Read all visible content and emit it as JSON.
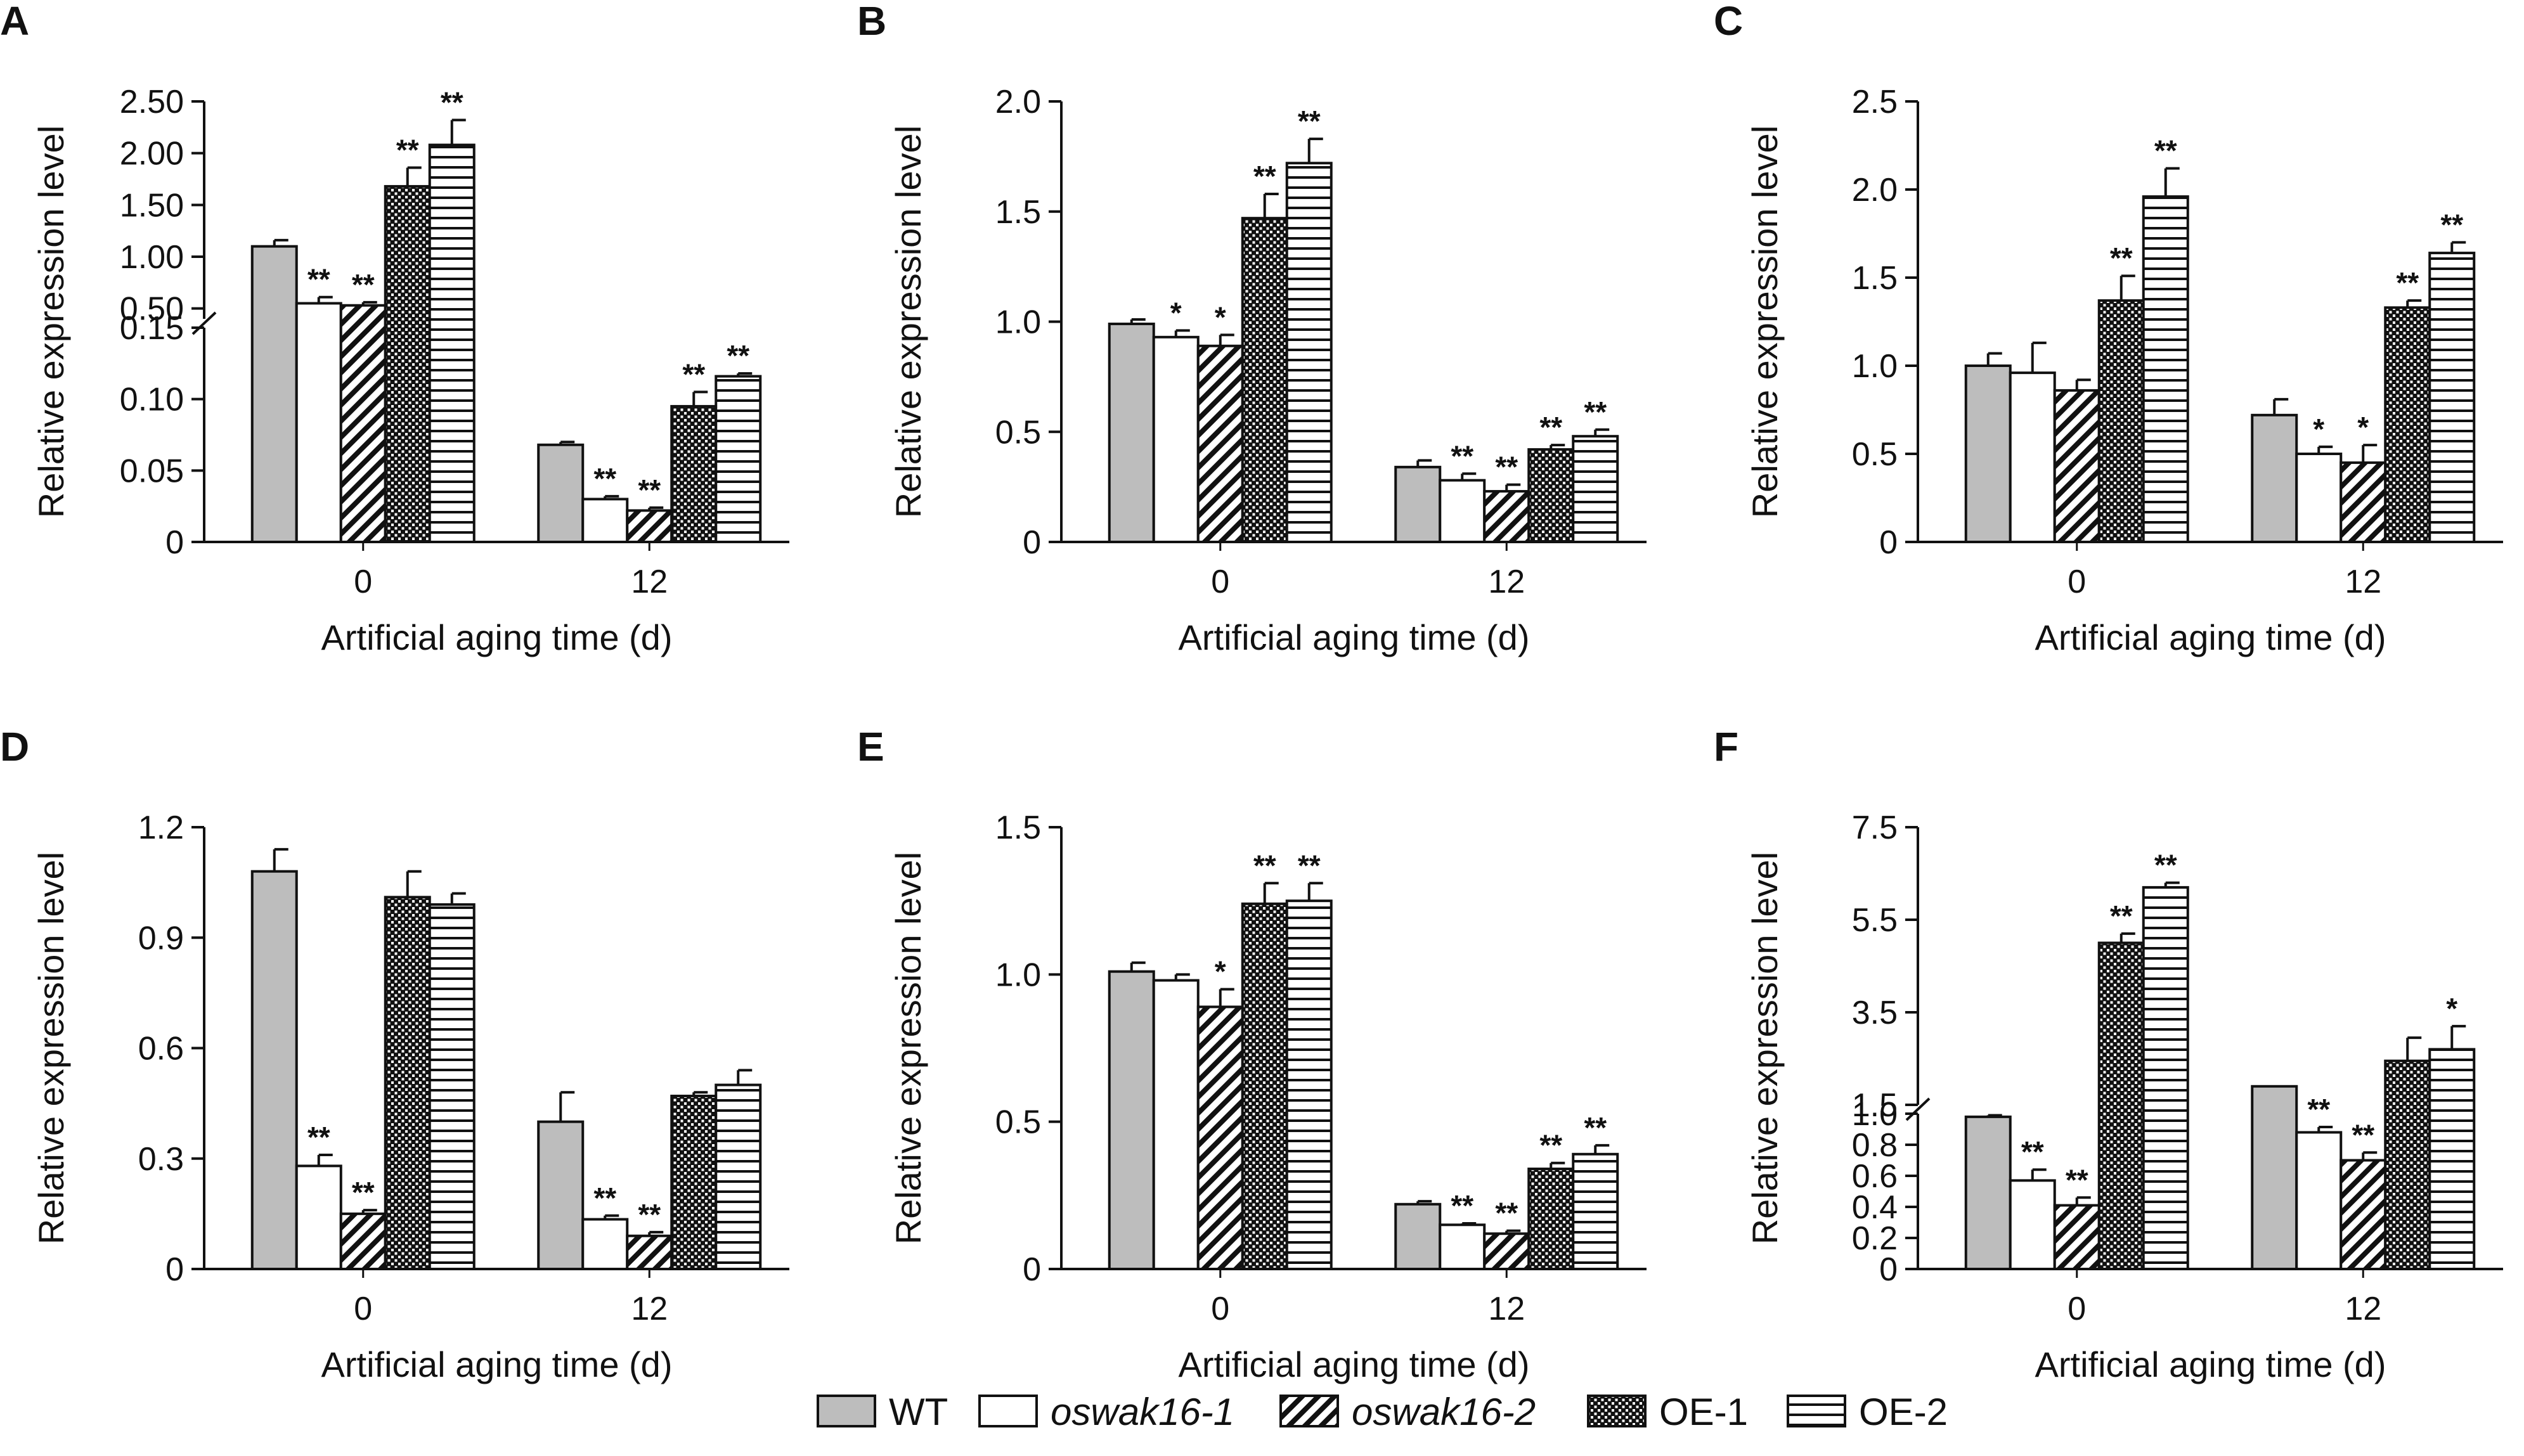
{
  "colors": {
    "WT": "#bdbdbd",
    "oswak16-1": "#ffffff",
    "oswak16-2": "hatch-diagonal",
    "OE-1": "crosshatch-dense",
    "OE-2": "hatch-horizontal",
    "stroke": "#111111"
  },
  "legend": {
    "placement": "bottom-center",
    "items": [
      {
        "label": "WT",
        "italic": false,
        "fill": "WT"
      },
      {
        "label": "oswak16-1",
        "italic": true,
        "fill": "oswak16-1"
      },
      {
        "label": "oswak16-2",
        "italic": true,
        "fill": "oswak16-2"
      },
      {
        "label": "OE-1",
        "italic": false,
        "fill": "OE-1"
      },
      {
        "label": "OE-2",
        "italic": false,
        "fill": "OE-2"
      }
    ]
  },
  "chart_data": [
    {
      "panel": "A",
      "type": "bar",
      "broken_axis": true,
      "xlabel": "Artificial aging time (d)",
      "ylabel": "Relative expression level",
      "categories": [
        "0",
        "12"
      ],
      "upper": {
        "range": [
          0.4,
          2.5
        ],
        "ticks": [
          "0.50",
          "1.00",
          "1.50",
          "2.00",
          "2.50"
        ],
        "tick_values": [
          0.5,
          1.0,
          1.5,
          2.0,
          2.5
        ]
      },
      "lower": {
        "range": [
          0,
          0.15
        ],
        "ticks": [
          "0",
          "0.05",
          "0.10",
          "0.15"
        ],
        "tick_values": [
          0,
          0.05,
          0.1,
          0.15
        ]
      },
      "series": [
        {
          "name": "WT",
          "values": [
            1.1,
            0.068
          ],
          "errors": [
            0.06,
            0.002
          ],
          "sig": [
            "",
            ""
          ]
        },
        {
          "name": "oswak16-1",
          "values": [
            0.55,
            0.03
          ],
          "errors": [
            0.06,
            0.002
          ],
          "sig": [
            "**",
            "**"
          ]
        },
        {
          "name": "oswak16-2",
          "values": [
            0.53,
            0.022
          ],
          "errors": [
            0.03,
            0.002
          ],
          "sig": [
            "**",
            "**"
          ]
        },
        {
          "name": "OE-1",
          "values": [
            1.68,
            0.095
          ],
          "errors": [
            0.18,
            0.01
          ],
          "sig": [
            "**",
            "**"
          ]
        },
        {
          "name": "OE-2",
          "values": [
            2.08,
            0.116
          ],
          "errors": [
            0.24,
            0.002
          ],
          "sig": [
            "**",
            "**"
          ]
        }
      ]
    },
    {
      "panel": "B",
      "type": "bar",
      "broken_axis": false,
      "xlabel": "Artificial aging time (d)",
      "ylabel": "Relative expression level",
      "categories": [
        "0",
        "12"
      ],
      "ylim": [
        0,
        2.0
      ],
      "ticks": [
        "0",
        "0.5",
        "1.0",
        "1.5",
        "2.0"
      ],
      "tick_values": [
        0,
        0.5,
        1.0,
        1.5,
        2.0
      ],
      "series": [
        {
          "name": "WT",
          "values": [
            0.99,
            0.34
          ],
          "errors": [
            0.02,
            0.03
          ],
          "sig": [
            "",
            ""
          ]
        },
        {
          "name": "oswak16-1",
          "values": [
            0.93,
            0.28
          ],
          "errors": [
            0.03,
            0.03
          ],
          "sig": [
            "*",
            "**"
          ]
        },
        {
          "name": "oswak16-2",
          "values": [
            0.89,
            0.23
          ],
          "errors": [
            0.05,
            0.03
          ],
          "sig": [
            "*",
            "**"
          ]
        },
        {
          "name": "OE-1",
          "values": [
            1.47,
            0.42
          ],
          "errors": [
            0.11,
            0.02
          ],
          "sig": [
            "**",
            "**"
          ]
        },
        {
          "name": "OE-2",
          "values": [
            1.72,
            0.48
          ],
          "errors": [
            0.11,
            0.03
          ],
          "sig": [
            "**",
            "**"
          ]
        }
      ]
    },
    {
      "panel": "C",
      "type": "bar",
      "broken_axis": false,
      "xlabel": "Artificial aging time (d)",
      "ylabel": "Relative expression level",
      "categories": [
        "0",
        "12"
      ],
      "ylim": [
        0,
        2.5
      ],
      "ticks": [
        "0",
        "0.5",
        "1.0",
        "1.5",
        "2.0",
        "2.5"
      ],
      "tick_values": [
        0,
        0.5,
        1.0,
        1.5,
        2.0,
        2.5
      ],
      "series": [
        {
          "name": "WT",
          "values": [
            1.0,
            0.72
          ],
          "errors": [
            0.07,
            0.09
          ],
          "sig": [
            "",
            ""
          ]
        },
        {
          "name": "oswak16-1",
          "values": [
            0.96,
            0.5
          ],
          "errors": [
            0.17,
            0.04
          ],
          "sig": [
            "",
            "*"
          ]
        },
        {
          "name": "oswak16-2",
          "values": [
            0.86,
            0.45
          ],
          "errors": [
            0.06,
            0.1
          ],
          "sig": [
            "",
            "*"
          ]
        },
        {
          "name": "OE-1",
          "values": [
            1.37,
            1.33
          ],
          "errors": [
            0.14,
            0.04
          ],
          "sig": [
            "**",
            "**"
          ]
        },
        {
          "name": "OE-2",
          "values": [
            1.96,
            1.64
          ],
          "errors": [
            0.16,
            0.06
          ],
          "sig": [
            "**",
            "**"
          ]
        }
      ]
    },
    {
      "panel": "D",
      "type": "bar",
      "broken_axis": false,
      "xlabel": "Artificial aging time (d)",
      "ylabel": "Relative expression level",
      "categories": [
        "0",
        "12"
      ],
      "ylim": [
        0,
        1.2
      ],
      "ticks": [
        "0",
        "0.3",
        "0.6",
        "0.9",
        "1.2"
      ],
      "tick_values": [
        0,
        0.3,
        0.6,
        0.9,
        1.2
      ],
      "series": [
        {
          "name": "WT",
          "values": [
            1.08,
            0.4
          ],
          "errors": [
            0.06,
            0.08
          ],
          "sig": [
            "",
            ""
          ]
        },
        {
          "name": "oswak16-1",
          "values": [
            0.28,
            0.135
          ],
          "errors": [
            0.03,
            0.01
          ],
          "sig": [
            "**",
            "**"
          ]
        },
        {
          "name": "oswak16-2",
          "values": [
            0.15,
            0.09
          ],
          "errors": [
            0.01,
            0.01
          ],
          "sig": [
            "**",
            "**"
          ]
        },
        {
          "name": "OE-1",
          "values": [
            1.01,
            0.47
          ],
          "errors": [
            0.07,
            0.01
          ],
          "sig": [
            "",
            ""
          ]
        },
        {
          "name": "OE-2",
          "values": [
            0.99,
            0.5
          ],
          "errors": [
            0.03,
            0.04
          ],
          "sig": [
            "",
            ""
          ]
        }
      ]
    },
    {
      "panel": "E",
      "type": "bar",
      "broken_axis": false,
      "xlabel": "Artificial aging time (d)",
      "ylabel": "Relative expression level",
      "categories": [
        "0",
        "12"
      ],
      "ylim": [
        0,
        1.5
      ],
      "ticks": [
        "0",
        "0.5",
        "1.0",
        "1.5"
      ],
      "tick_values": [
        0,
        0.5,
        1.0,
        1.5
      ],
      "series": [
        {
          "name": "WT",
          "values": [
            1.01,
            0.22
          ],
          "errors": [
            0.03,
            0.01
          ],
          "sig": [
            "",
            ""
          ]
        },
        {
          "name": "oswak16-1",
          "values": [
            0.98,
            0.15
          ],
          "errors": [
            0.02,
            0.005
          ],
          "sig": [
            "",
            "**"
          ]
        },
        {
          "name": "oswak16-2",
          "values": [
            0.89,
            0.12
          ],
          "errors": [
            0.06,
            0.01
          ],
          "sig": [
            "*",
            "**"
          ]
        },
        {
          "name": "OE-1",
          "values": [
            1.24,
            0.34
          ],
          "errors": [
            0.07,
            0.02
          ],
          "sig": [
            "**",
            "**"
          ]
        },
        {
          "name": "OE-2",
          "values": [
            1.25,
            0.39
          ],
          "errors": [
            0.06,
            0.03
          ],
          "sig": [
            "**",
            "**"
          ]
        }
      ]
    },
    {
      "panel": "F",
      "type": "bar",
      "broken_axis": true,
      "xlabel": "Artificial aging time (d)",
      "ylabel": "Relative expression level",
      "categories": [
        "0",
        "12"
      ],
      "upper": {
        "range": [
          1.5,
          7.5
        ],
        "ticks": [
          "1.5",
          "3.5",
          "5.5",
          "7.5"
        ],
        "tick_values": [
          1.5,
          3.5,
          5.5,
          7.5
        ]
      },
      "lower": {
        "range": [
          0,
          1.0
        ],
        "ticks": [
          "0",
          "0.2",
          "0.4",
          "0.6",
          "0.8",
          "1.0"
        ],
        "tick_values": [
          0,
          0.2,
          0.4,
          0.6,
          0.8,
          1.0
        ]
      },
      "series": [
        {
          "name": "WT",
          "values": [
            0.98,
            1.9
          ],
          "errors": [
            0.01,
            0.0
          ],
          "sig": [
            "",
            ""
          ]
        },
        {
          "name": "oswak16-1",
          "values": [
            0.57,
            0.88
          ],
          "errors": [
            0.07,
            0.14
          ],
          "sig": [
            "**",
            "**"
          ]
        },
        {
          "name": "oswak16-2",
          "values": [
            0.41,
            0.7
          ],
          "errors": [
            0.05,
            0.05
          ],
          "sig": [
            "**",
            "**"
          ]
        },
        {
          "name": "OE-1",
          "values": [
            5.0,
            2.45
          ],
          "errors": [
            0.2,
            0.5
          ],
          "sig": [
            "**",
            ""
          ]
        },
        {
          "name": "OE-2",
          "values": [
            6.2,
            2.7
          ],
          "errors": [
            0.1,
            0.5
          ],
          "sig": [
            "**",
            "*"
          ]
        }
      ]
    }
  ]
}
